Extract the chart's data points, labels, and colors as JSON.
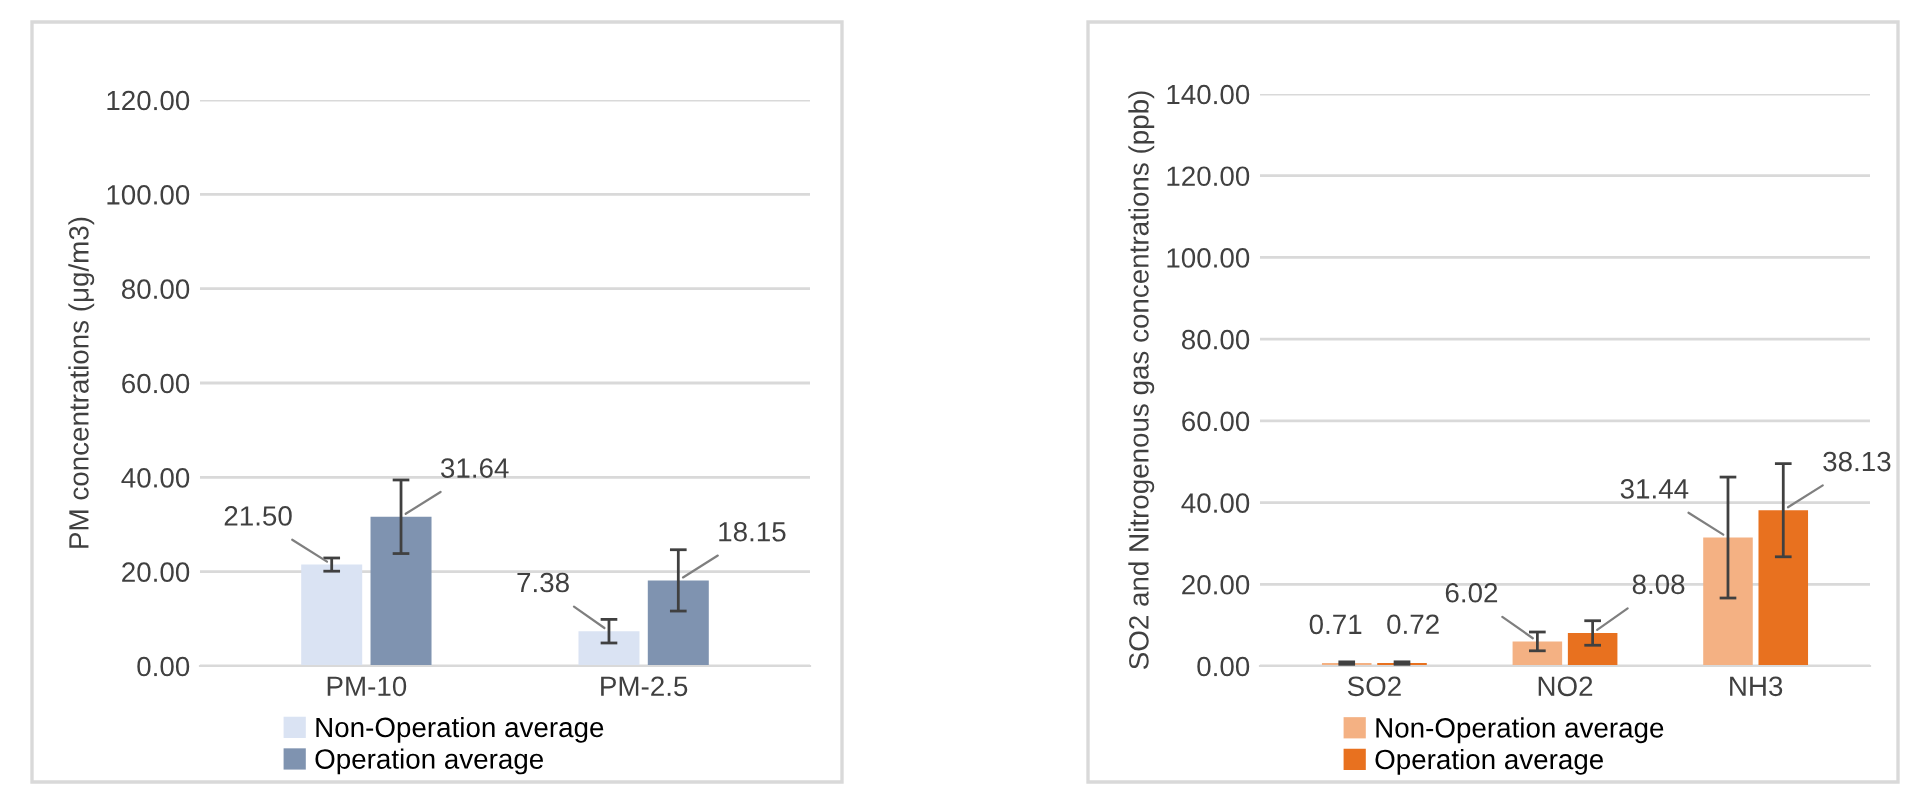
{
  "chart_data": [
    {
      "type": "bar",
      "ylabel": "PM concentrations (μg/m3)",
      "categories": [
        "PM-10",
        "PM-2.5"
      ],
      "series": [
        {
          "name": "Non-Operation average",
          "color": "#dae3f3",
          "values": [
            21.5,
            7.38
          ],
          "value_labels": [
            "21.50",
            "7.38"
          ],
          "errors": [
            1.4,
            2.5
          ]
        },
        {
          "name": "Operation average",
          "color": "#7f93b0",
          "values": [
            31.64,
            18.15
          ],
          "value_labels": [
            "31.64",
            "18.15"
          ],
          "errors": [
            7.8,
            6.5
          ]
        }
      ],
      "ylim": [
        0,
        120
      ],
      "yticks": [
        {
          "value": 0,
          "label": "0.00"
        },
        {
          "value": 20,
          "label": "20.00"
        },
        {
          "value": 40,
          "label": "40.00"
        },
        {
          "value": 60,
          "label": "60.00"
        },
        {
          "value": 80,
          "label": "80.00"
        },
        {
          "value": 100,
          "label": "100.00"
        },
        {
          "value": 120,
          "label": "120.00"
        }
      ],
      "grid": "y",
      "legend": "bottom"
    },
    {
      "type": "bar",
      "ylabel": "SO2 and Nitrogenous gas concentrations (ppb)",
      "categories": [
        "SO2",
        "NO2",
        "NH3"
      ],
      "series": [
        {
          "name": "Non-Operation average",
          "color": "#f4b183",
          "values": [
            0.71,
            6.02,
            31.44
          ],
          "value_labels": [
            "0.71",
            "6.02",
            "31.44"
          ],
          "errors": [
            0.3,
            2.3,
            14.8
          ]
        },
        {
          "name": "Operation average",
          "color": "#e8711f",
          "values": [
            0.72,
            8.08,
            38.13
          ],
          "value_labels": [
            "0.72",
            "8.08",
            "38.13"
          ],
          "errors": [
            0.3,
            3.0,
            11.4
          ]
        }
      ],
      "ylim": [
        0,
        140
      ],
      "yticks": [
        {
          "value": 0,
          "label": "0.00"
        },
        {
          "value": 20,
          "label": "20.00"
        },
        {
          "value": 40,
          "label": "40.00"
        },
        {
          "value": 60,
          "label": "60.00"
        },
        {
          "value": 80,
          "label": "80.00"
        },
        {
          "value": 100,
          "label": "100.00"
        },
        {
          "value": 120,
          "label": "120.00"
        },
        {
          "value": 140,
          "label": "140.00"
        }
      ],
      "grid": "y",
      "legend": "bottom"
    }
  ]
}
